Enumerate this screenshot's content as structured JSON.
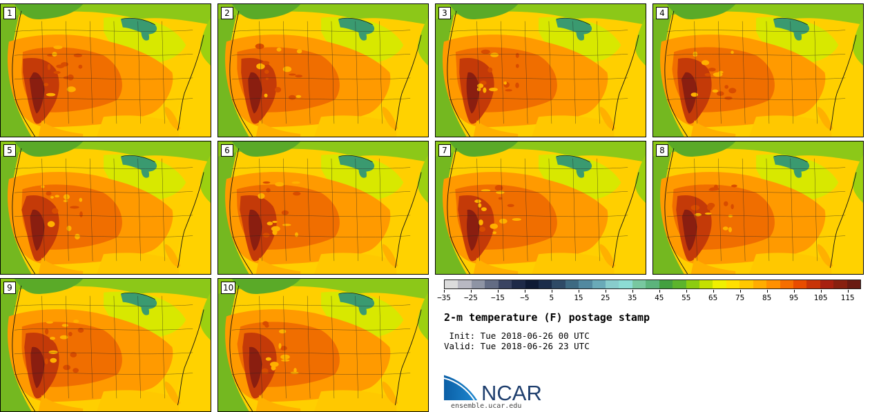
{
  "panels": [
    {
      "label": "1"
    },
    {
      "label": "2"
    },
    {
      "label": "3"
    },
    {
      "label": "4"
    },
    {
      "label": "5"
    },
    {
      "label": "6"
    },
    {
      "label": "7"
    },
    {
      "label": "8"
    },
    {
      "label": "9"
    },
    {
      "label": "10"
    }
  ],
  "colorbar": {
    "colors": [
      "#dcdcdc",
      "#b8b8c2",
      "#8e94a4",
      "#636c84",
      "#3a4462",
      "#1e2a48",
      "#0e1a34",
      "#1a2c4a",
      "#2e4a66",
      "#3e6a82",
      "#5289a0",
      "#6aaab8",
      "#88cccc",
      "#8cdcd4",
      "#78c8a0",
      "#5cb47c",
      "#43a040",
      "#5cb42c",
      "#8ccc10",
      "#c4e000",
      "#f0f000",
      "#ffe000",
      "#ffc800",
      "#ffac00",
      "#ff9000",
      "#f56e00",
      "#e84c00",
      "#c83408",
      "#a82010",
      "#882010",
      "#6a1a12"
    ],
    "tick_labels": [
      "−35",
      "−25",
      "−15",
      "−5",
      "5",
      "15",
      "25",
      "35",
      "45",
      "55",
      "65",
      "75",
      "85",
      "95",
      "105",
      "115"
    ]
  },
  "title": "2-m temperature (F) postage stamp",
  "init_line": " Init: Tue 2018-06-26 00 UTC",
  "valid_line": "Valid: Tue 2018-06-26 23 UTC",
  "logo_text": "NCAR",
  "url": "ensemble.ucar.edu"
}
